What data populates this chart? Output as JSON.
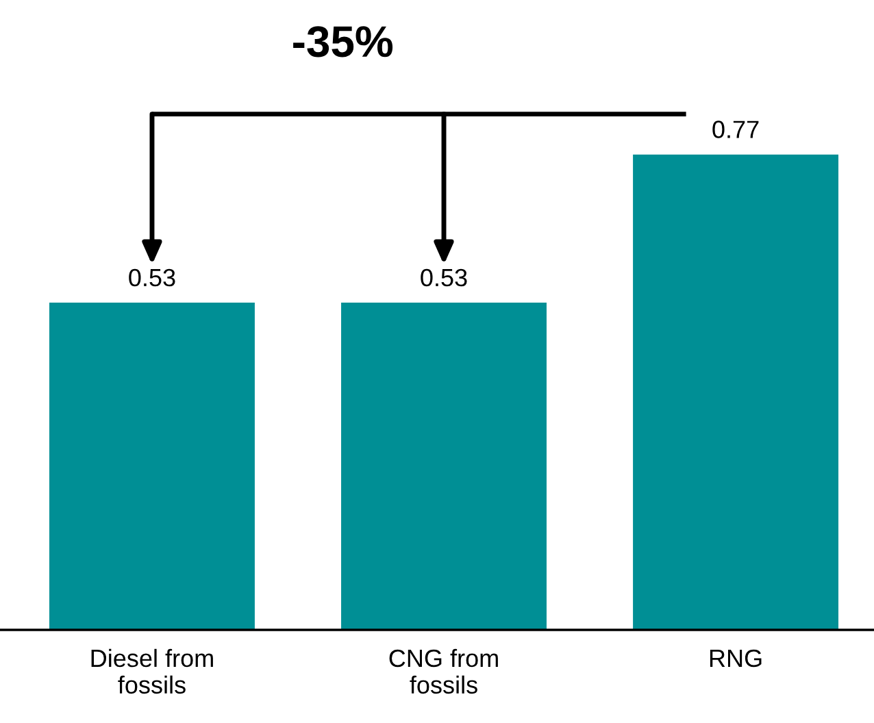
{
  "chart_data": {
    "type": "bar",
    "categories": [
      "Diesel from\nfossils",
      "CNG from\nfossils",
      "RNG"
    ],
    "values": [
      0.53,
      0.53,
      0.77
    ],
    "color": "#008f95",
    "data_labels": true,
    "annotations": [
      "-35%"
    ],
    "grid": false,
    "legend": false
  }
}
